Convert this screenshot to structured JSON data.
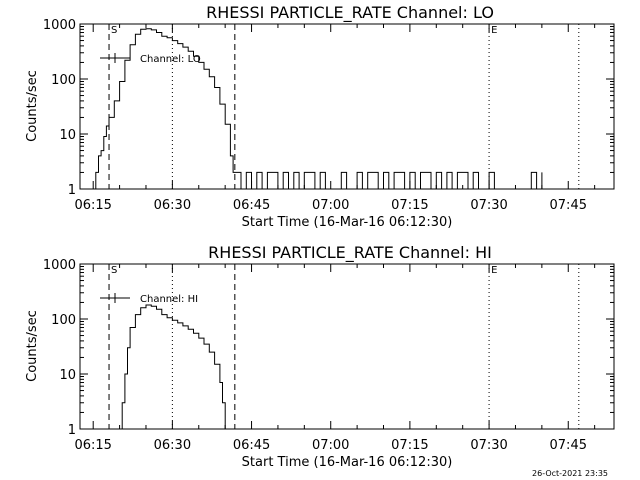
{
  "timestamp": "26-Oct-2021 23:35",
  "colors": {
    "background": "#ffffff",
    "foreground": "#000000"
  },
  "chart_data": [
    {
      "type": "line",
      "title": "RHESSI PARTICLE_RATE Channel: LO",
      "xlabel": "Start Time (16-Mar-16 06:12:30)",
      "ylabel": "Counts/sec",
      "y_scale": "log",
      "ylim": [
        1,
        1000
      ],
      "xlim": [
        "06:12:30",
        "07:53:40"
      ],
      "x_ticks": [
        "06:15",
        "06:30",
        "06:45",
        "07:00",
        "07:15",
        "07:30",
        "07:45"
      ],
      "y_ticks": [
        "1",
        "10",
        "100",
        "1000"
      ],
      "legend": {
        "label": "Channel: LO",
        "position": "top-left"
      },
      "markers": [
        {
          "time": "06:18:00",
          "style": "dashed",
          "label": "S"
        },
        {
          "time": "06:30:00",
          "style": "dotted",
          "label": ""
        },
        {
          "time": "06:41:50",
          "style": "dashed",
          "label": ""
        },
        {
          "time": "07:30:00",
          "style": "dotted",
          "label": "E"
        },
        {
          "time": "07:47:00",
          "style": "dotted",
          "label": ""
        }
      ],
      "series": [
        {
          "x": [
            "06:15:00",
            "06:15:30",
            "06:16:00",
            "06:16:30",
            "06:17:00",
            "06:17:30",
            "06:18:00",
            "06:19:00",
            "06:20:00",
            "06:21:00",
            "06:22:00",
            "06:23:00",
            "06:24:00",
            "06:25:00",
            "06:26:00",
            "06:27:00",
            "06:28:00",
            "06:29:00",
            "06:30:00",
            "06:31:00",
            "06:32:00",
            "06:33:00",
            "06:34:00",
            "06:35:00",
            "06:36:00",
            "06:37:00",
            "06:38:00",
            "06:39:00",
            "06:40:00",
            "06:41:00",
            "06:41:30",
            "06:42:00",
            "06:43:00",
            "06:44:00",
            "06:45:00",
            "06:46:00",
            "06:47:00",
            "06:48:00",
            "06:49:00",
            "06:50:00",
            "06:51:00",
            "06:52:00",
            "06:53:00",
            "06:54:00",
            "06:55:00",
            "06:56:00",
            "06:57:00",
            "06:58:00",
            "06:59:00",
            "07:00:00",
            "07:01:00",
            "07:02:00",
            "07:03:00",
            "07:04:00",
            "07:05:00",
            "07:06:00",
            "07:07:00",
            "07:08:00",
            "07:09:00",
            "07:10:00",
            "07:11:00",
            "07:12:00",
            "07:13:00",
            "07:14:00",
            "07:15:00",
            "07:16:00",
            "07:17:00",
            "07:18:00",
            "07:19:00",
            "07:20:00",
            "07:21:00",
            "07:22:00",
            "07:23:00",
            "07:24:00",
            "07:25:00",
            "07:26:00",
            "07:27:00",
            "07:28:00",
            "07:29:00",
            "07:30:00",
            "07:31:00",
            "07:32:00",
            "07:33:00",
            "07:34:00",
            "07:35:00",
            "07:36:00",
            "07:37:00",
            "07:38:00",
            "07:39:00",
            "07:40:00"
          ],
          "values": [
            1,
            2,
            4,
            5,
            9,
            14,
            20,
            40,
            90,
            220,
            420,
            650,
            800,
            820,
            780,
            700,
            600,
            560,
            500,
            440,
            380,
            320,
            260,
            200,
            150,
            110,
            70,
            35,
            15,
            4,
            2,
            2,
            1,
            2,
            1,
            2,
            1,
            2,
            2,
            1,
            2,
            1,
            2,
            1,
            2,
            2,
            1,
            2,
            1,
            1,
            1,
            2,
            1,
            1,
            2,
            1,
            2,
            2,
            1,
            2,
            1,
            2,
            2,
            1,
            2,
            1,
            2,
            2,
            1,
            2,
            1,
            2,
            1,
            2,
            2,
            1,
            2,
            1,
            1,
            2,
            1,
            1,
            1,
            1,
            1,
            1,
            1,
            2,
            1,
            2
          ]
        }
      ]
    },
    {
      "type": "line",
      "title": "RHESSI PARTICLE_RATE Channel: HI",
      "xlabel": "Start Time (16-Mar-16 06:12:30)",
      "ylabel": "Counts/sec",
      "y_scale": "log",
      "ylim": [
        1,
        1000
      ],
      "xlim": [
        "06:12:30",
        "07:53:40"
      ],
      "x_ticks": [
        "06:15",
        "06:30",
        "06:45",
        "07:00",
        "07:15",
        "07:30",
        "07:45"
      ],
      "y_ticks": [
        "1",
        "10",
        "100",
        "1000"
      ],
      "legend": {
        "label": "Channel: HI",
        "position": "top-left"
      },
      "markers": [
        {
          "time": "06:18:00",
          "style": "dashed",
          "label": "S"
        },
        {
          "time": "06:30:00",
          "style": "dotted",
          "label": ""
        },
        {
          "time": "06:41:50",
          "style": "dashed",
          "label": ""
        },
        {
          "time": "07:30:00",
          "style": "dotted",
          "label": "E"
        },
        {
          "time": "07:47:00",
          "style": "dotted",
          "label": ""
        }
      ],
      "series": [
        {
          "x": [
            "06:20:00",
            "06:20:30",
            "06:21:00",
            "06:21:30",
            "06:22:00",
            "06:23:00",
            "06:24:00",
            "06:25:00",
            "06:26:00",
            "06:27:00",
            "06:28:00",
            "06:29:00",
            "06:30:00",
            "06:31:00",
            "06:32:00",
            "06:33:00",
            "06:34:00",
            "06:35:00",
            "06:36:00",
            "06:37:00",
            "06:38:00",
            "06:39:00",
            "06:39:30",
            "06:40:00"
          ],
          "values": [
            1,
            3,
            10,
            30,
            70,
            120,
            160,
            180,
            170,
            150,
            120,
            105,
            95,
            85,
            75,
            65,
            55,
            45,
            35,
            25,
            15,
            7,
            3,
            1
          ]
        }
      ]
    }
  ]
}
